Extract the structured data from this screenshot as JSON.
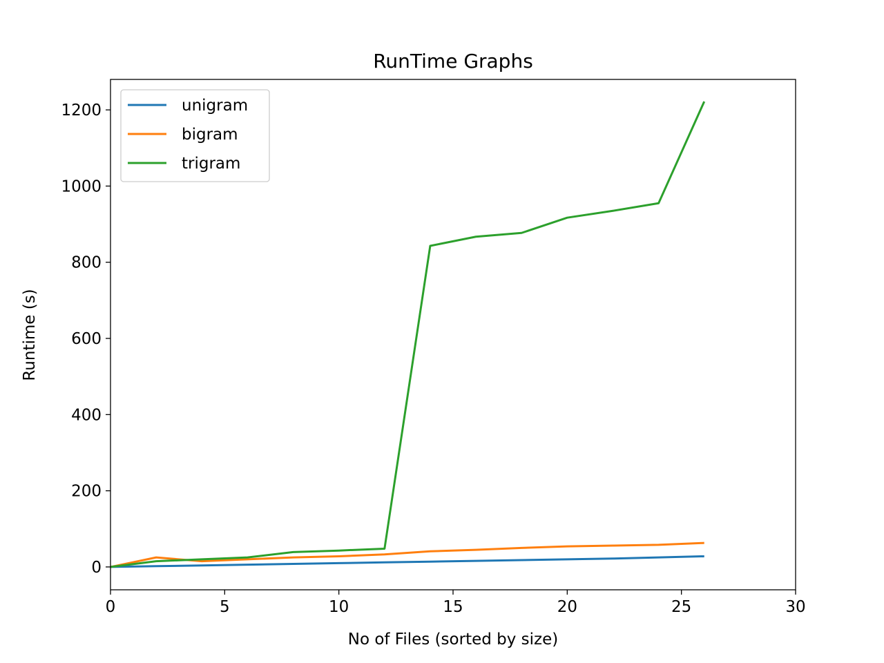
{
  "chart_data": {
    "type": "line",
    "title": "RunTime Graphs",
    "xlabel": "No of Files (sorted by size)",
    "ylabel": "Runtime (s)",
    "xlim": [
      0,
      30
    ],
    "ylim": [
      -60,
      1280
    ],
    "xticks": [
      0,
      5,
      10,
      15,
      20,
      25,
      30
    ],
    "yticks": [
      0,
      200,
      400,
      600,
      800,
      1000,
      1200
    ],
    "grid": false,
    "legend_position": "upper-left",
    "series": [
      {
        "name": "unigram",
        "color": "#1f77b4",
        "x": [
          0,
          2,
          4,
          6,
          8,
          10,
          12,
          14,
          16,
          18,
          20,
          22,
          24,
          26
        ],
        "y": [
          0,
          2,
          4,
          6,
          8,
          10,
          12,
          14,
          16,
          18,
          20,
          22,
          25,
          28
        ]
      },
      {
        "name": "bigram",
        "color": "#ff7f0e",
        "x": [
          0,
          2,
          4,
          6,
          8,
          10,
          12,
          14,
          16,
          18,
          20,
          22,
          24,
          26
        ],
        "y": [
          0,
          25,
          15,
          20,
          25,
          28,
          33,
          41,
          45,
          50,
          54,
          56,
          58,
          63
        ]
      },
      {
        "name": "trigram",
        "color": "#2ca02c",
        "x": [
          0,
          2,
          4,
          6,
          8,
          10,
          12,
          14,
          16,
          18,
          20,
          22,
          24,
          26
        ],
        "y": [
          0,
          15,
          20,
          25,
          39,
          43,
          48,
          843,
          867,
          877,
          917,
          935,
          955,
          1222
        ]
      }
    ]
  }
}
